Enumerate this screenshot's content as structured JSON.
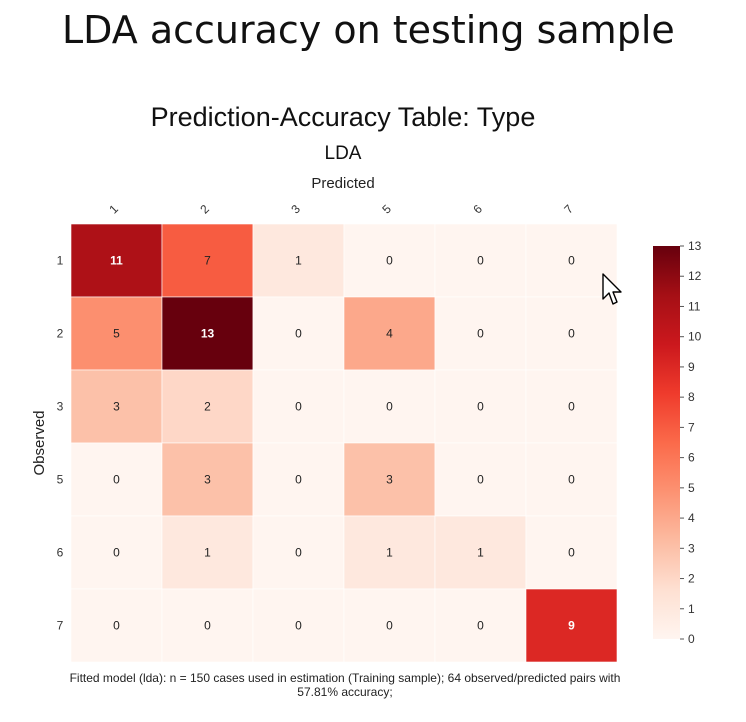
{
  "page": {
    "title": "LDA accuracy on testing sample",
    "footnote_line1": "Fitted model (lda): n = 150 cases used in estimation (Training sample); 64 observed/predicted pairs with",
    "footnote_line2": "57.81% accuracy;"
  },
  "chart_data": {
    "type": "heatmap",
    "title": "Prediction-Accuracy Table: Type",
    "subtitle": "LDA",
    "xlabel": "Predicted",
    "ylabel": "Observed",
    "x_categories": [
      "1",
      "2",
      "3",
      "5",
      "6",
      "7"
    ],
    "y_categories": [
      "1",
      "2",
      "3",
      "5",
      "6",
      "7"
    ],
    "values": [
      [
        11,
        7,
        1,
        0,
        0,
        0
      ],
      [
        5,
        13,
        0,
        4,
        0,
        0
      ],
      [
        3,
        2,
        0,
        0,
        0,
        0
      ],
      [
        0,
        3,
        0,
        3,
        0,
        0
      ],
      [
        0,
        1,
        0,
        1,
        1,
        0
      ],
      [
        0,
        0,
        0,
        0,
        0,
        9
      ]
    ],
    "colorbar": {
      "min": 0,
      "max": 13,
      "ticks": [
        0,
        1,
        2,
        3,
        4,
        5,
        6,
        7,
        8,
        9,
        10,
        11,
        12,
        13
      ]
    },
    "colormap": [
      "#fff5f0",
      "#fee0d2",
      "#fcbba1",
      "#fc9272",
      "#fb6a4a",
      "#ef3b2c",
      "#cb181d",
      "#a50f15",
      "#67000d"
    ]
  }
}
